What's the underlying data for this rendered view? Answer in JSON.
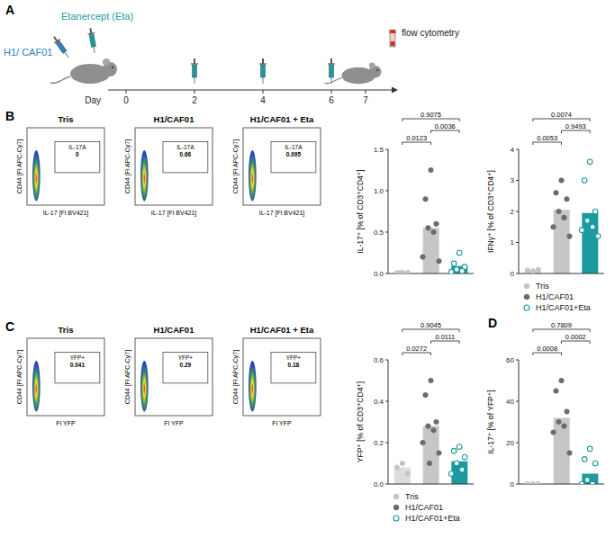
{
  "panel_A": {
    "letter": "A",
    "first_injection": "H1/ CAF01",
    "first_injection_day": 0,
    "treatment": "Etanercept (Eta)",
    "treatment_days": [
      0,
      2,
      4,
      6
    ],
    "readout": "flow cytometry",
    "readout_day": 7,
    "axis_label": "Day",
    "days": [
      0,
      2,
      4,
      6,
      7
    ]
  },
  "panel_B": {
    "letter": "B",
    "y_label": "CD44 [Fl APC-Cy7]",
    "x_label": "IL-17 [Fl BV421]",
    "gate": "IL-17A",
    "plots": [
      {
        "title": "Tris",
        "gate_value": 0
      },
      {
        "title": "H1/CAF01",
        "gate_value": 0.66
      },
      {
        "title": "H1/CAF01 + Eta",
        "gate_value": 0.095
      }
    ]
  },
  "panel_C": {
    "letter": "C",
    "y_label": "CD44 [Fl APC-Cy7]",
    "x_label": "Fl YFP",
    "gate": "YFP+",
    "plots": [
      {
        "title": "Tris",
        "gate_value": 0.041
      },
      {
        "title": "H1/CAF01",
        "gate_value": 0.29
      },
      {
        "title": "H1/CAF01 + Eta",
        "gate_value": 0.18
      }
    ]
  },
  "chart_data": [
    {
      "type": "bar",
      "y_label": "IL-17⁺ [% of CD3⁺CD4⁺]",
      "ylim": [
        0,
        1.5
      ],
      "yticks": [
        {
          "value": 0,
          "label": "0.0"
        },
        0.5,
        {
          "value": 1,
          "label": "1.0"
        },
        1.5
      ],
      "tick_labels": "y",
      "colors": [
        "#dcdcdc",
        "#c6c6c6",
        "#1b9aa0"
      ],
      "series": [
        {
          "name": "Tris",
          "color": "#c4c4c4",
          "marker": "filled",
          "values": [
            0.01
          ],
          "points": [
            0.01,
            0.005,
            0.01,
            0.008
          ]
        },
        {
          "name": "H1/CAF01",
          "color": "#6b6b6b",
          "marker": "filled",
          "values": [
            0.55
          ],
          "points": [
            1.25,
            0.9,
            0.6,
            0.55,
            0.5,
            0.2,
            0.15
          ]
        },
        {
          "name": "H1/CAF01+Eta",
          "color": "#1b9aa0",
          "marker": "open",
          "values": [
            0.09
          ],
          "points": [
            0.25,
            0.12,
            0.08,
            0.05,
            0.03,
            0.02
          ]
        }
      ],
      "comparisons": [
        {
          "from": "Tris",
          "to": "H1/CAF01",
          "p": 0.0123
        },
        {
          "from": "H1/CAF01",
          "to": "H1/CAF01+Eta",
          "p": 0.0036
        },
        {
          "from": "Tris",
          "to": "H1/CAF01+Eta",
          "p": 0.9075
        }
      ]
    },
    {
      "type": "bar",
      "y_label": "IFNγ⁺ [% of CD3⁺CD4⁺]",
      "ylim": [
        0,
        4
      ],
      "yticks": [
        0,
        1,
        2,
        3,
        4
      ],
      "tick_labels": "y",
      "legend": "bottom",
      "colors": [
        "#dcdcdc",
        "#c6c6c6",
        "#1b9aa0"
      ],
      "series": [
        {
          "name": "Tris",
          "color": "#c4c4c4",
          "marker": "filled",
          "values": [
            0.1
          ],
          "points": [
            0.08,
            0.1,
            0.12
          ]
        },
        {
          "name": "H1/CAF01",
          "color": "#6b6b6b",
          "marker": "filled",
          "values": [
            2.05
          ],
          "points": [
            3.0,
            2.6,
            2.4,
            2.0,
            1.8,
            1.5,
            1.2
          ]
        },
        {
          "name": "H1/CAF01+Eta",
          "color": "#1b9aa0",
          "marker": "open",
          "values": [
            1.95
          ],
          "points": [
            3.6,
            3.0,
            2.0,
            1.7,
            1.5,
            1.4,
            1.2
          ]
        }
      ],
      "comparisons": [
        {
          "from": "Tris",
          "to": "H1/CAF01",
          "p": 0.0053
        },
        {
          "from": "H1/CAF01",
          "to": "H1/CAF01+Eta",
          "p": 0.9493
        },
        {
          "from": "Tris",
          "to": "H1/CAF01+Eta",
          "p": 0.0074
        }
      ]
    },
    {
      "type": "bar",
      "y_label": "YFP⁺ [% of CD3⁺CD4⁺]",
      "ylim": [
        0,
        0.6
      ],
      "yticks": [
        {
          "value": 0,
          "label": "0.0"
        },
        0.2,
        0.4,
        0.6
      ],
      "tick_labels": "y",
      "legend": "bottom",
      "colors": [
        "#dcdcdc",
        "#c6c6c6",
        "#1b9aa0"
      ],
      "series": [
        {
          "name": "Tris",
          "color": "#c4c4c4",
          "marker": "filled",
          "values": [
            0.08
          ],
          "points": [
            0.1,
            0.08,
            0.05
          ]
        },
        {
          "name": "H1/CAF01",
          "color": "#6b6b6b",
          "marker": "filled",
          "values": [
            0.28
          ],
          "points": [
            0.5,
            0.43,
            0.3,
            0.28,
            0.26,
            0.2,
            0.15,
            0.1
          ]
        },
        {
          "name": "H1/CAF01+Eta",
          "color": "#1b9aa0",
          "marker": "open",
          "values": [
            0.11
          ],
          "points": [
            0.18,
            0.16,
            0.13,
            0.1,
            0.07,
            0.05
          ]
        }
      ],
      "comparisons": [
        {
          "from": "Tris",
          "to": "H1/CAF01",
          "p": 0.0272
        },
        {
          "from": "H1/CAF01",
          "to": "H1/CAF01+Eta",
          "p": 0.0111
        },
        {
          "from": "Tris",
          "to": "H1/CAF01+Eta",
          "p": 0.9045
        }
      ]
    },
    {
      "type": "bar",
      "panel_label": "D",
      "y_label": "IL-17⁺ [% of YFP⁺]",
      "ylim": [
        0,
        60
      ],
      "yticks": [
        0,
        20,
        40,
        60
      ],
      "tick_labels": "y",
      "colors": [
        "#dcdcdc",
        "#c6c6c6",
        "#1b9aa0"
      ],
      "series": [
        {
          "name": "Tris",
          "color": "#c4c4c4",
          "marker": "filled",
          "values": [
            0
          ],
          "points": [
            0,
            0,
            0
          ]
        },
        {
          "name": "H1/CAF01",
          "color": "#6b6b6b",
          "marker": "filled",
          "values": [
            32
          ],
          "points": [
            50,
            45,
            35,
            30,
            28,
            25,
            15
          ]
        },
        {
          "name": "H1/CAF01+Eta",
          "color": "#1b9aa0",
          "marker": "open",
          "values": [
            5
          ],
          "points": [
            17,
            12,
            10,
            2,
            0,
            0
          ]
        }
      ],
      "comparisons": [
        {
          "from": "Tris",
          "to": "H1/CAF01",
          "p": 0.0008
        },
        {
          "from": "H1/CAF01",
          "to": "H1/CAF01+Eta",
          "p": 0.0002
        },
        {
          "from": "Tris",
          "to": "H1/CAF01+Eta",
          "p": 0.7809
        }
      ]
    }
  ]
}
